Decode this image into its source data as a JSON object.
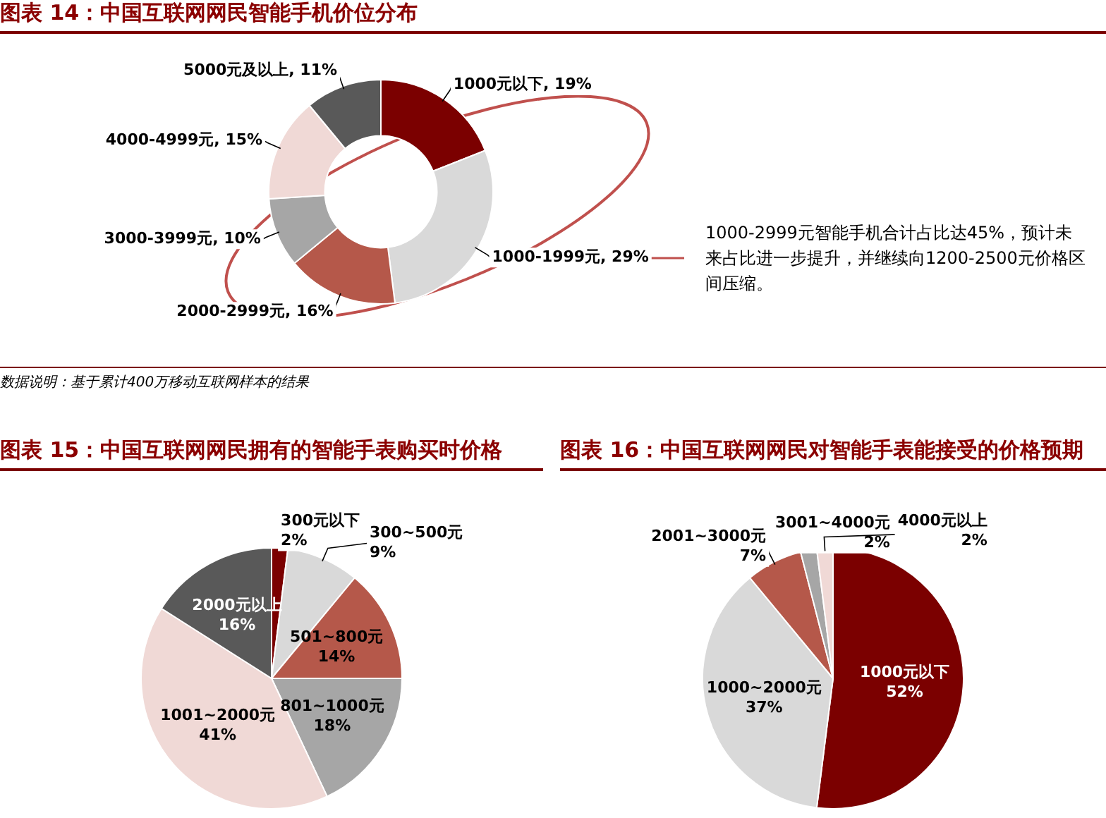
{
  "chart_data": [
    {
      "type": "donut",
      "title": "图表 14：中国互联网网民智能手机价位分布",
      "categories": [
        "1000元以下",
        "1000-1999元",
        "2000-2999元",
        "3000-3999元",
        "4000-4999元",
        "5000元及以上"
      ],
      "values": [
        19,
        29,
        16,
        10,
        15,
        11
      ],
      "colors": [
        "#7b0000",
        "#d9d9d9",
        "#b5584a",
        "#a6a6a6",
        "#f0d9d6",
        "#595959"
      ],
      "value_labels": [
        "19%",
        "29%",
        "16%",
        "10%",
        "15%",
        "11%"
      ],
      "legend": false,
      "annotations": [
        "1000-2999元智能手机合计占比达45%，预计未来占比进一步提升，并继续向1200-2500元价格区间压缩。",
        "数据说明：基于累计400万移动互联网样本的结果"
      ]
    },
    {
      "type": "pie",
      "title": "图表 15：中国互联网网民拥有的智能手表购买时价格",
      "categories": [
        "300元以下",
        "300~500元",
        "501~800元",
        "801~1000元",
        "1001~2000元",
        "2000元以上"
      ],
      "values": [
        2,
        9,
        14,
        18,
        41,
        16
      ],
      "colors": [
        "#7b0000",
        "#d9d9d9",
        "#b5584a",
        "#a6a6a6",
        "#f0d9d6",
        "#595959"
      ],
      "value_labels": [
        "2%",
        "9%",
        "14%",
        "18%",
        "41%",
        "16%"
      ],
      "legend": false
    },
    {
      "type": "pie",
      "title": "图表 16：中国互联网网民对智能手表能接受的价格预期",
      "categories": [
        "1000元以下",
        "1000~2000元",
        "2001~3000元",
        "3001~4000元",
        "4000元以上"
      ],
      "values": [
        52,
        37,
        7,
        2,
        2
      ],
      "colors": [
        "#7b0000",
        "#d9d9d9",
        "#b5584a",
        "#a6a6a6",
        "#f0d9d6"
      ],
      "value_labels": [
        "52%",
        "37%",
        "7%",
        "2%",
        "2%"
      ],
      "legend": false
    }
  ]
}
